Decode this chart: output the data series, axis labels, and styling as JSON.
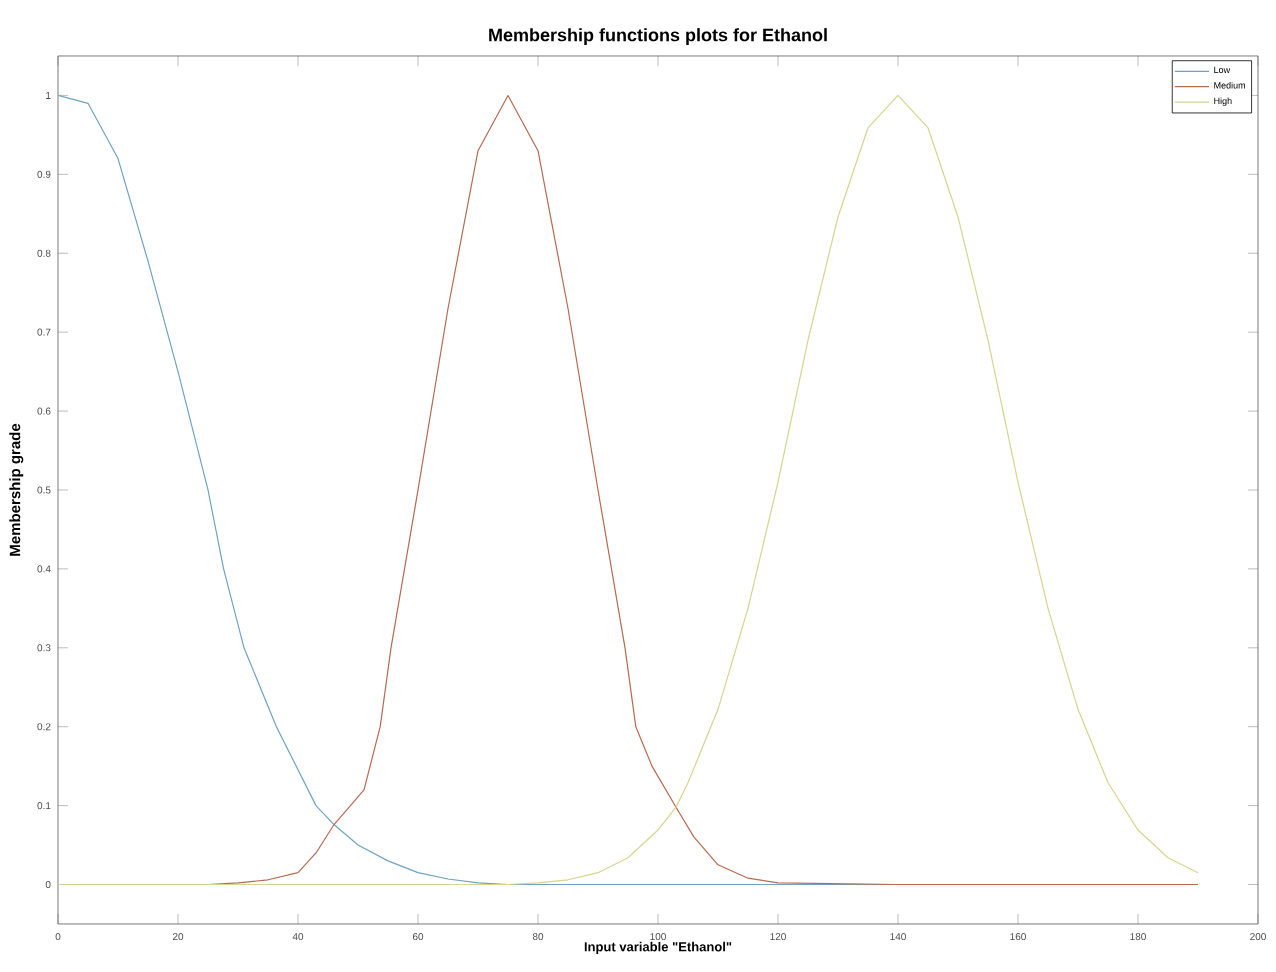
{
  "chart_data": {
    "type": "line",
    "title": "Membership functions plots for Ethanol",
    "xlabel": "Input variable \"Ethanol\"",
    "ylabel": "Membership grade",
    "xlim": [
      0,
      200
    ],
    "ylim": [
      -0.05,
      1.05
    ],
    "xticks": [
      0,
      20,
      40,
      60,
      80,
      100,
      120,
      140,
      160,
      180,
      200
    ],
    "yticks": [
      0,
      0.1,
      0.2,
      0.3,
      0.4,
      0.5,
      0.6,
      0.7,
      0.8,
      0.9,
      1
    ],
    "legend": "top right",
    "grid": false,
    "marker": "none",
    "line_style": "solid",
    "series": [
      {
        "name": "Low",
        "color": "#6fa3c0",
        "x": [
          0,
          5,
          10,
          15,
          20,
          25,
          27.6,
          31,
          36.4,
          43,
          46,
          50,
          55,
          60,
          65,
          70,
          75,
          80,
          100,
          120,
          140,
          160,
          190
        ],
        "values": [
          1,
          0.99,
          0.92,
          0.79,
          0.65,
          0.5,
          0.4,
          0.3,
          0.2,
          0.1,
          0.076,
          0.05,
          0.03,
          0.015,
          0.007,
          0.002,
          0,
          0,
          0,
          0,
          0,
          0,
          0
        ]
      },
      {
        "name": "Medium",
        "color": "#b86a50",
        "x": [
          0,
          25,
          30,
          35,
          40,
          43,
          46,
          51,
          53.7,
          55.5,
          60,
          65,
          70,
          75,
          80,
          85,
          90,
          94.5,
          96.3,
          99,
          103,
          106,
          110,
          115,
          120,
          140,
          160,
          190
        ],
        "values": [
          0,
          0,
          0.002,
          0.006,
          0.015,
          0.04,
          0.076,
          0.12,
          0.2,
          0.3,
          0.5,
          0.73,
          0.93,
          1,
          0.93,
          0.73,
          0.5,
          0.3,
          0.2,
          0.15,
          0.098,
          0.06,
          0.025,
          0.008,
          0.002,
          0,
          0,
          0
        ]
      },
      {
        "name": "High",
        "color": "#d6d48e",
        "x": [
          0,
          40,
          75,
          80,
          85,
          90,
          95,
          100,
          103,
          105,
          110,
          115,
          120,
          125,
          130,
          135,
          140,
          145,
          150,
          155,
          160,
          165,
          170,
          175,
          180,
          185,
          190
        ],
        "values": [
          0,
          0,
          0,
          0.002,
          0.006,
          0.015,
          0.034,
          0.069,
          0.098,
          0.129,
          0.222,
          0.35,
          0.51,
          0.69,
          0.846,
          0.959,
          1,
          0.959,
          0.846,
          0.69,
          0.51,
          0.35,
          0.222,
          0.129,
          0.069,
          0.034,
          0.015
        ]
      }
    ]
  }
}
